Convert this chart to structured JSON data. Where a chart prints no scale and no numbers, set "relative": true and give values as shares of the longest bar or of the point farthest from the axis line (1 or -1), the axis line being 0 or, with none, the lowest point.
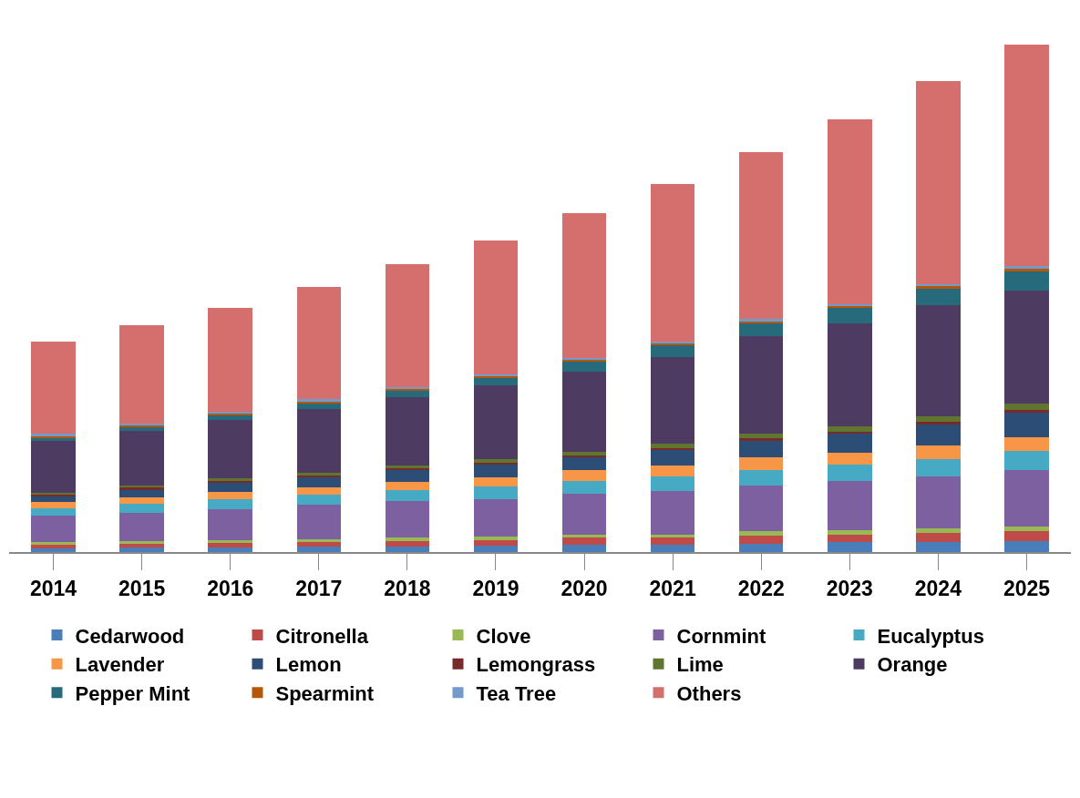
{
  "chart_data": {
    "type": "bar",
    "stacked": true,
    "relative": true,
    "legend": "bottom",
    "categories": [
      "2014",
      "2015",
      "2016",
      "2017",
      "2018",
      "2019",
      "2020",
      "2021",
      "2022",
      "2023",
      "2024",
      "2025"
    ],
    "series": [
      {
        "name": "Cedarwood",
        "color": "#4a7ebb",
        "values": [
          0.007,
          0.009,
          0.009,
          0.011,
          0.011,
          0.013,
          0.015,
          0.015,
          0.017,
          0.019,
          0.02,
          0.022
        ]
      },
      {
        "name": "Citronella",
        "color": "#be4b48",
        "values": [
          0.007,
          0.007,
          0.009,
          0.009,
          0.011,
          0.011,
          0.013,
          0.013,
          0.015,
          0.015,
          0.017,
          0.019
        ]
      },
      {
        "name": "Clove",
        "color": "#98b954",
        "values": [
          0.006,
          0.006,
          0.006,
          0.006,
          0.007,
          0.007,
          0.007,
          0.007,
          0.009,
          0.009,
          0.009,
          0.009
        ]
      },
      {
        "name": "Cornmint",
        "color": "#7d60a0",
        "values": [
          0.052,
          0.056,
          0.061,
          0.067,
          0.071,
          0.074,
          0.08,
          0.086,
          0.091,
          0.097,
          0.104,
          0.112
        ]
      },
      {
        "name": "Eucalyptus",
        "color": "#46aac5",
        "values": [
          0.015,
          0.017,
          0.019,
          0.02,
          0.022,
          0.024,
          0.026,
          0.028,
          0.03,
          0.032,
          0.034,
          0.037
        ]
      },
      {
        "name": "Lavender",
        "color": "#f79646",
        "values": [
          0.011,
          0.013,
          0.015,
          0.015,
          0.017,
          0.019,
          0.02,
          0.022,
          0.024,
          0.024,
          0.026,
          0.028
        ]
      },
      {
        "name": "Lemon",
        "color": "#2c4d75",
        "values": [
          0.011,
          0.015,
          0.017,
          0.019,
          0.022,
          0.024,
          0.026,
          0.03,
          0.034,
          0.037,
          0.041,
          0.047
        ]
      },
      {
        "name": "Lemongrass",
        "color": "#772c2a",
        "values": [
          0.004,
          0.004,
          0.004,
          0.004,
          0.004,
          0.004,
          0.004,
          0.004,
          0.004,
          0.004,
          0.006,
          0.006
        ]
      },
      {
        "name": "Lime",
        "color": "#5f7530",
        "values": [
          0.004,
          0.004,
          0.006,
          0.006,
          0.006,
          0.007,
          0.007,
          0.009,
          0.009,
          0.011,
          0.011,
          0.013
        ]
      },
      {
        "name": "Orange",
        "color": "#4d3b62",
        "values": [
          0.102,
          0.108,
          0.114,
          0.125,
          0.134,
          0.145,
          0.158,
          0.171,
          0.192,
          0.203,
          0.218,
          0.223
        ]
      },
      {
        "name": "Pepper Mint",
        "color": "#276a7c",
        "values": [
          0.006,
          0.007,
          0.009,
          0.011,
          0.013,
          0.015,
          0.019,
          0.022,
          0.026,
          0.03,
          0.034,
          0.037
        ]
      },
      {
        "name": "Spearmint",
        "color": "#b65708",
        "values": [
          0.004,
          0.004,
          0.004,
          0.004,
          0.004,
          0.004,
          0.004,
          0.004,
          0.004,
          0.004,
          0.004,
          0.006
        ]
      },
      {
        "name": "Tea Tree",
        "color": "#729aca",
        "values": [
          0.004,
          0.004,
          0.004,
          0.004,
          0.004,
          0.004,
          0.004,
          0.004,
          0.004,
          0.004,
          0.004,
          0.005
        ]
      },
      {
        "name": "Others",
        "color": "#d46f6e",
        "values": [
          0.182,
          0.194,
          0.205,
          0.222,
          0.242,
          0.264,
          0.285,
          0.311,
          0.33,
          0.365,
          0.4,
          0.436
        ]
      }
    ]
  }
}
